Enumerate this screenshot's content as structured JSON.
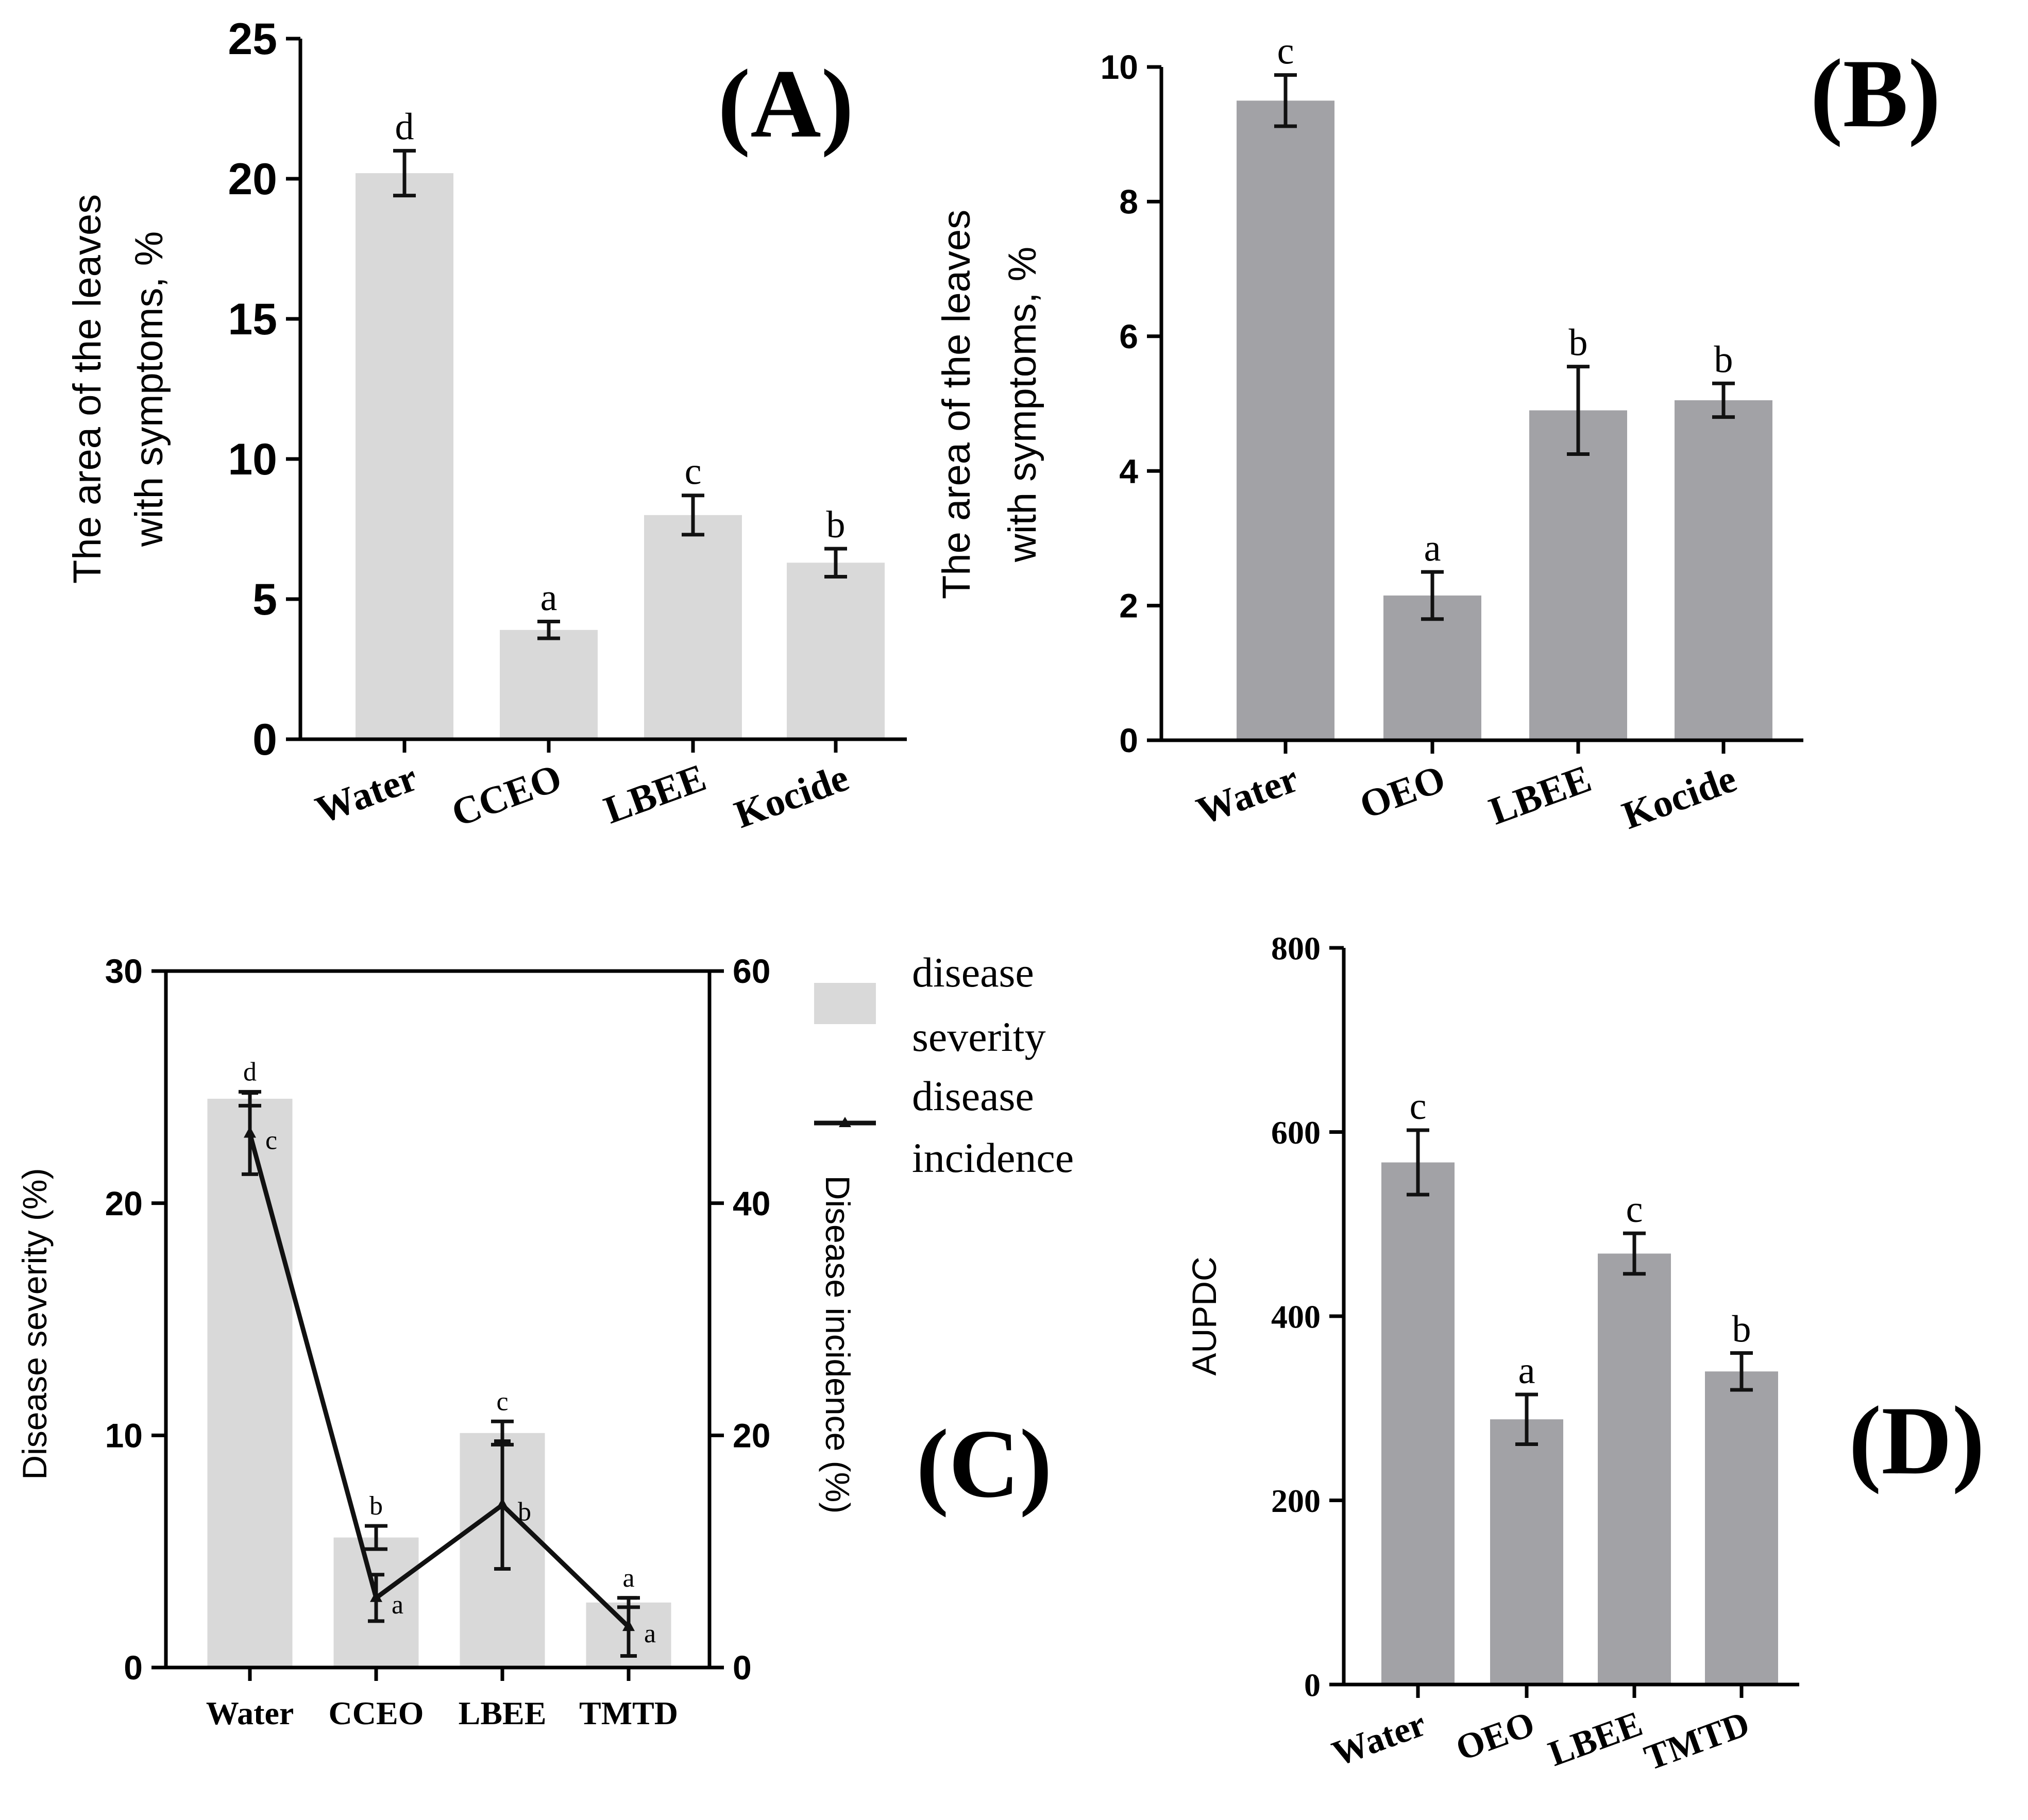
{
  "chart_data": [
    {
      "id": "A",
      "type": "bar",
      "panel_label": "(A)",
      "categories": [
        "Water",
        "CCEO",
        "LBEE",
        "Kocide"
      ],
      "series": [
        {
          "name": "area with symptoms",
          "values": [
            20.2,
            3.9,
            8.0,
            6.3
          ],
          "errors": [
            0.8,
            0.3,
            0.7,
            0.5
          ],
          "letters": [
            "d",
            "a",
            "c",
            "b"
          ]
        }
      ],
      "ylabel": [
        "The area of the leaves",
        "with symptoms, %"
      ],
      "xlabel": "",
      "ylim": [
        0,
        25
      ],
      "yticks": [
        0,
        5,
        10,
        15,
        20,
        25
      ],
      "color": "#d9d9d9"
    },
    {
      "id": "B",
      "type": "bar",
      "panel_label": "(B)",
      "categories": [
        "Water",
        "OEO",
        "LBEE",
        "Kocide"
      ],
      "series": [
        {
          "name": "area with symptoms",
          "values": [
            9.5,
            2.15,
            4.9,
            5.05
          ],
          "errors": [
            0.38,
            0.35,
            0.65,
            0.25
          ],
          "letters": [
            "c",
            "a",
            "b",
            "b"
          ]
        }
      ],
      "ylabel": [
        "The area of the leaves",
        "with symptoms, %"
      ],
      "xlabel": "",
      "ylim": [
        0,
        10
      ],
      "yticks": [
        0,
        2,
        4,
        6,
        8,
        10
      ],
      "color": "#a2a2a6"
    },
    {
      "id": "C",
      "type": "bar",
      "panel_label": "(C)",
      "categories": [
        "Water",
        "CCEO",
        "LBEE",
        "TMTD"
      ],
      "series": [
        {
          "name": "disease severity",
          "kind": "bar",
          "axis": "left",
          "values": [
            24.5,
            5.6,
            10.1,
            2.8
          ],
          "errors": [
            0.3,
            0.5,
            0.5,
            0.2
          ],
          "letters": [
            "d",
            "b",
            "c",
            "a"
          ]
        },
        {
          "name": "disease incidence",
          "kind": "line",
          "axis": "right",
          "values": [
            46,
            6,
            14,
            3.5
          ],
          "errors": [
            3.5,
            2,
            5.5,
            2.5
          ],
          "letters": [
            "c",
            "a",
            "b",
            "a"
          ]
        }
      ],
      "ylabel": "Disease severity (%)",
      "y2label": "Disease incidence (%)",
      "ylim": [
        0,
        30
      ],
      "yticks": [
        0,
        10,
        20,
        30
      ],
      "y2lim": [
        0,
        60
      ],
      "y2ticks": [
        0,
        20,
        40,
        60
      ],
      "legend": {
        "position": "right",
        "entries": [
          {
            "lines": [
              "disease",
              "severity"
            ]
          },
          {
            "lines": [
              "disease",
              "incidence"
            ]
          }
        ]
      },
      "color": "#d9d9d9",
      "line_color": "#111111"
    },
    {
      "id": "D",
      "type": "bar",
      "panel_label": "(D)",
      "categories": [
        "Water",
        "OEO",
        "LBEE",
        "TMTD"
      ],
      "series": [
        {
          "name": "AUPDC",
          "values": [
            567,
            288,
            468,
            340
          ],
          "errors": [
            35,
            27,
            22,
            20
          ],
          "letters": [
            "c",
            "a",
            "c",
            "b"
          ]
        }
      ],
      "ylabel": "AUPDC",
      "xlabel": "",
      "ylim": [
        0,
        800
      ],
      "yticks": [
        0,
        200,
        400,
        600,
        800
      ],
      "color": "#a2a2a6"
    }
  ]
}
